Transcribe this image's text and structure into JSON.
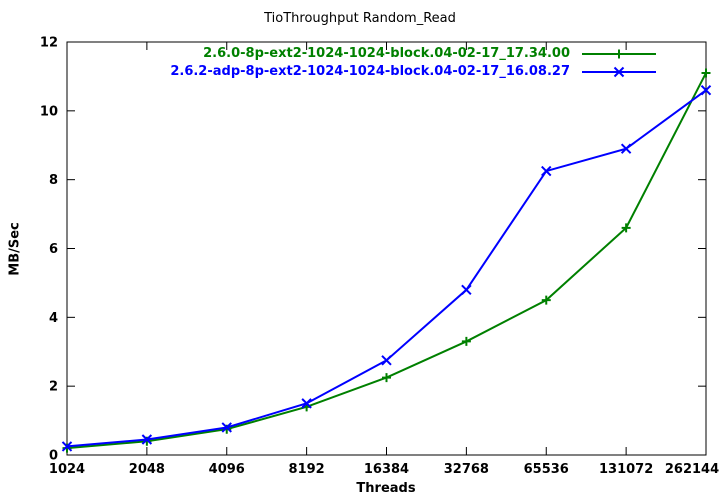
{
  "chart_data": {
    "type": "line",
    "title": "TioThroughput Random_Read",
    "xlabel": "Threads",
    "ylabel": "MB/Sec",
    "categories": [
      "1024",
      "2048",
      "4096",
      "8192",
      "16384",
      "32768",
      "65536",
      "131072",
      "262144"
    ],
    "ylim": [
      0,
      12
    ],
    "yticks": [
      0,
      2,
      4,
      6,
      8,
      10,
      12
    ],
    "grid": false,
    "legend_position": "top-right-inside",
    "series": [
      {
        "name": "2.6.0-8p-ext2-1024-1024-block.04-02-17_17.34.00",
        "color": "#008000",
        "marker": "plus",
        "values": [
          0.2,
          0.4,
          0.75,
          1.4,
          2.25,
          3.3,
          4.5,
          6.6,
          11.1
        ]
      },
      {
        "name": "2.6.2-adp-8p-ext2-1024-1024-block.04-02-17_16.08.27",
        "color": "#0000ff",
        "marker": "cross",
        "values": [
          0.25,
          0.45,
          0.8,
          1.5,
          2.75,
          4.8,
          8.25,
          8.9,
          10.6
        ]
      }
    ]
  }
}
